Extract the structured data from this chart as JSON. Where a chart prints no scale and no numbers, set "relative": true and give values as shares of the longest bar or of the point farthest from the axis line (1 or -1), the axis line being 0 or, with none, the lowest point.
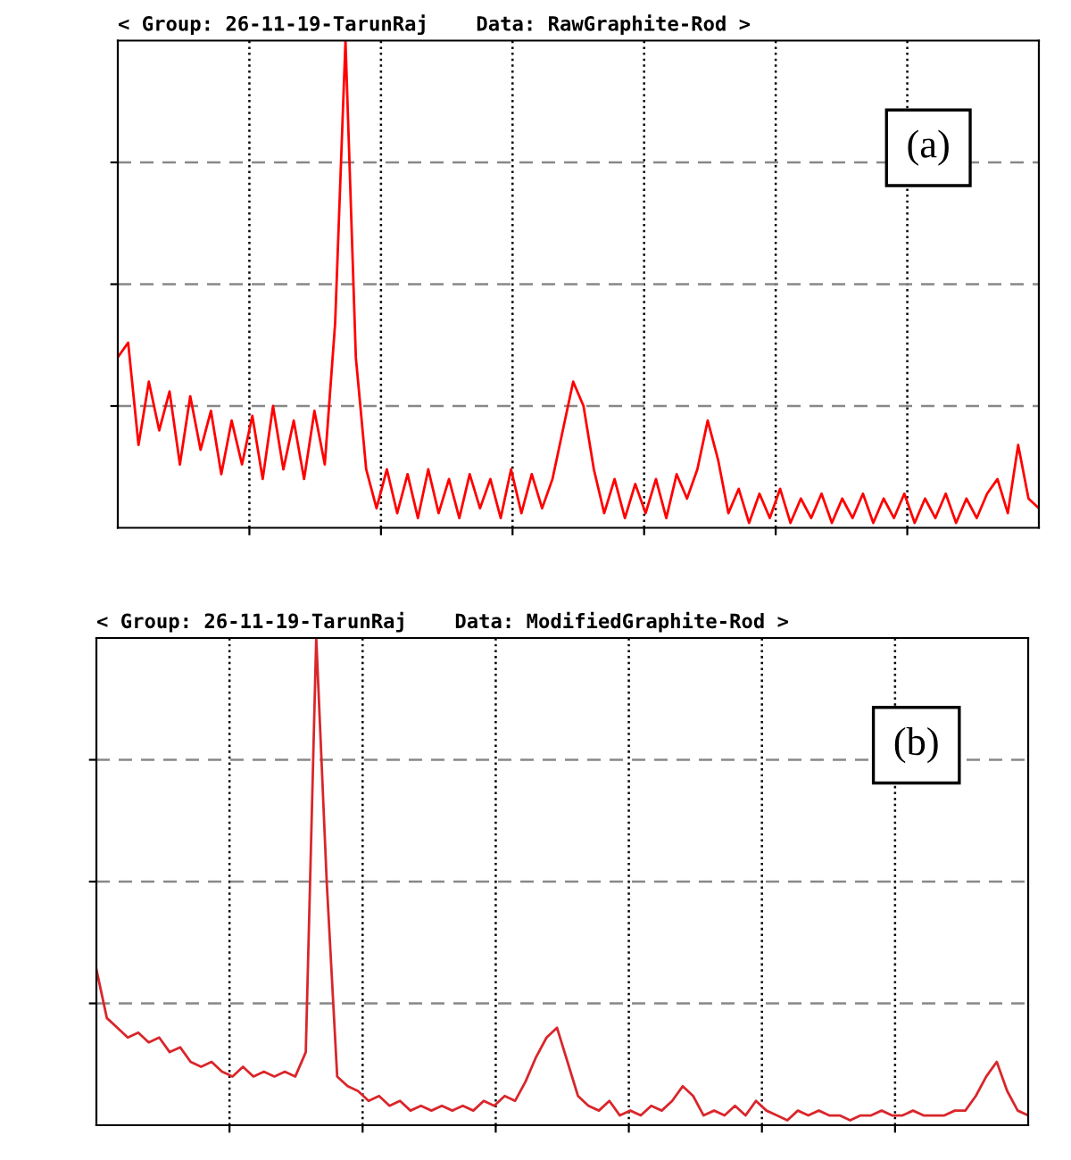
{
  "chart_data": [
    {
      "type": "line",
      "title": "< Group: 26-11-19-TarunRaj    Data: RawGraphite-Rod >",
      "relative": true,
      "grid": true,
      "tick_labels": false,
      "annotations": [
        "(a)"
      ],
      "categories": [
        null,
        null,
        null,
        null,
        null,
        null,
        null,
        null,
        null,
        null,
        null,
        null,
        null,
        null,
        null,
        null,
        null,
        null,
        null,
        null,
        null,
        null,
        null,
        null,
        null,
        null,
        null,
        null,
        null,
        null,
        null,
        null,
        null,
        null,
        null,
        null,
        null,
        null,
        null,
        null,
        null,
        null,
        null,
        null,
        null,
        null,
        null,
        null,
        null,
        null,
        null,
        null,
        null,
        null,
        null,
        null,
        null,
        null,
        null,
        null,
        null,
        null,
        null,
        null,
        null,
        null,
        null,
        null,
        null,
        null,
        null,
        null,
        null,
        null,
        null,
        null,
        null,
        null,
        null,
        null,
        null,
        null,
        null,
        null,
        null,
        null,
        null,
        null,
        null,
        null
      ],
      "series": [
        {
          "color": "#ff0000",
          "values": [
            0.35,
            0.38,
            0.17,
            0.3,
            0.2,
            0.28,
            0.13,
            0.27,
            0.16,
            0.24,
            0.11,
            0.22,
            0.13,
            0.23,
            0.1,
            0.25,
            0.12,
            0.22,
            0.1,
            0.24,
            0.13,
            0.42,
            1.0,
            0.35,
            0.12,
            0.04,
            0.12,
            0.03,
            0.11,
            0.02,
            0.12,
            0.03,
            0.1,
            0.02,
            0.11,
            0.04,
            0.1,
            0.02,
            0.12,
            0.03,
            0.11,
            0.04,
            0.1,
            0.2,
            0.3,
            0.25,
            0.12,
            0.03,
            0.1,
            0.02,
            0.09,
            0.03,
            0.1,
            0.02,
            0.11,
            0.06,
            0.12,
            0.22,
            0.14,
            0.03,
            0.08,
            0.01,
            0.07,
            0.02,
            0.08,
            0.01,
            0.06,
            0.02,
            0.07,
            0.01,
            0.06,
            0.02,
            0.07,
            0.01,
            0.06,
            0.02,
            0.07,
            0.01,
            0.06,
            0.02,
            0.07,
            0.01,
            0.06,
            0.02,
            0.07,
            0.1,
            0.03,
            0.17,
            0.06,
            0.04
          ]
        }
      ]
    },
    {
      "type": "line",
      "title": "< Group: 26-11-19-TarunRaj    Data: ModifiedGraphite-Rod >",
      "relative": true,
      "grid": true,
      "tick_labels": false,
      "annotations": [
        "(b)"
      ],
      "categories": [
        null,
        null,
        null,
        null,
        null,
        null,
        null,
        null,
        null,
        null,
        null,
        null,
        null,
        null,
        null,
        null,
        null,
        null,
        null,
        null,
        null,
        null,
        null,
        null,
        null,
        null,
        null,
        null,
        null,
        null,
        null,
        null,
        null,
        null,
        null,
        null,
        null,
        null,
        null,
        null,
        null,
        null,
        null,
        null,
        null,
        null,
        null,
        null,
        null,
        null,
        null,
        null,
        null,
        null,
        null,
        null,
        null,
        null,
        null,
        null,
        null,
        null,
        null,
        null,
        null,
        null,
        null,
        null,
        null,
        null,
        null,
        null,
        null,
        null,
        null,
        null,
        null,
        null,
        null,
        null,
        null,
        null,
        null,
        null,
        null,
        null,
        null,
        null,
        null,
        null
      ],
      "series": [
        {
          "color": "#d9262b",
          "values": [
            0.32,
            0.22,
            0.2,
            0.18,
            0.19,
            0.17,
            0.18,
            0.15,
            0.16,
            0.13,
            0.12,
            0.13,
            0.11,
            0.1,
            0.12,
            0.1,
            0.11,
            0.1,
            0.11,
            0.1,
            0.15,
            1.0,
            0.5,
            0.1,
            0.08,
            0.07,
            0.05,
            0.06,
            0.04,
            0.05,
            0.03,
            0.04,
            0.03,
            0.04,
            0.03,
            0.04,
            0.03,
            0.05,
            0.04,
            0.06,
            0.05,
            0.09,
            0.14,
            0.18,
            0.2,
            0.13,
            0.06,
            0.04,
            0.03,
            0.05,
            0.02,
            0.03,
            0.02,
            0.04,
            0.03,
            0.05,
            0.08,
            0.06,
            0.02,
            0.03,
            0.02,
            0.04,
            0.02,
            0.05,
            0.03,
            0.02,
            0.01,
            0.03,
            0.02,
            0.03,
            0.02,
            0.02,
            0.01,
            0.02,
            0.02,
            0.03,
            0.02,
            0.02,
            0.03,
            0.02,
            0.02,
            0.02,
            0.03,
            0.03,
            0.06,
            0.1,
            0.13,
            0.07,
            0.03,
            0.02
          ]
        }
      ]
    }
  ]
}
